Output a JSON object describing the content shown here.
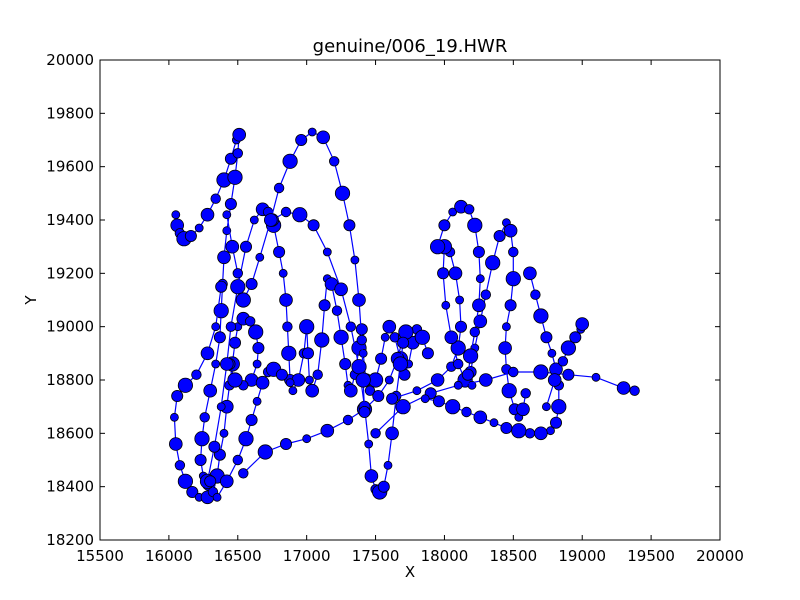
{
  "chart_data": {
    "type": "scatter",
    "title": "genuine/006_19.HWR",
    "xlabel": "X",
    "ylabel": "Y",
    "xlim": [
      15500,
      20000
    ],
    "ylim": [
      18200,
      20000
    ],
    "x_ticks": [
      "15500",
      "16000",
      "16500",
      "17000",
      "17500",
      "18000",
      "18500",
      "19000",
      "19500",
      "20000"
    ],
    "y_ticks": [
      "18200",
      "18400",
      "18600",
      "18800",
      "19000",
      "19200",
      "19400",
      "19600",
      "19800",
      "20000"
    ],
    "grid": false,
    "legend": "none",
    "marker_color": "#0000ff",
    "line_color": "#0000ff",
    "series": [
      {
        "strokes": [
          [
            [
              16050,
              19420
            ],
            [
              16060,
              19380
            ],
            [
              16080,
              19350
            ],
            [
              16110,
              19330
            ],
            [
              16160,
              19340
            ],
            [
              16220,
              19370
            ],
            [
              16280,
              19420
            ],
            [
              16340,
              19480
            ],
            [
              16400,
              19550
            ],
            [
              16450,
              19630
            ],
            [
              16490,
              19700
            ],
            [
              16510,
              19720
            ],
            [
              16500,
              19650
            ],
            [
              16480,
              19560
            ],
            [
              16450,
              19460
            ],
            [
              16420,
              19360
            ],
            [
              16400,
              19260
            ],
            [
              16390,
              19160
            ],
            [
              16380,
              19060
            ],
            [
              16370,
              18960
            ],
            [
              16340,
              18860
            ],
            [
              16300,
              18760
            ],
            [
              16260,
              18660
            ],
            [
              16240,
              18580
            ],
            [
              16230,
              18500
            ],
            [
              16250,
              18440
            ],
            [
              16290,
              18410
            ]
          ],
          [
            [
              16380,
              19150
            ],
            [
              16340,
              19000
            ],
            [
              16280,
              18900
            ],
            [
              16200,
              18820
            ],
            [
              16120,
              18780
            ],
            [
              16060,
              18740
            ],
            [
              16040,
              18660
            ],
            [
              16050,
              18560
            ],
            [
              16080,
              18480
            ],
            [
              16120,
              18420
            ],
            [
              16170,
              18380
            ],
            [
              16220,
              18360
            ],
            [
              16280,
              18360
            ],
            [
              16320,
              18380
            ],
            [
              16350,
              18440
            ],
            [
              16370,
              18520
            ],
            [
              16400,
              18600
            ],
            [
              16420,
              18700
            ],
            [
              16440,
              18780
            ],
            [
              16460,
              18860
            ],
            [
              16480,
              18940
            ],
            [
              16500,
              19000
            ],
            [
              16540,
              19030
            ],
            [
              16590,
              19020
            ],
            [
              16630,
              18980
            ],
            [
              16650,
              18920
            ],
            [
              16640,
              18860
            ],
            [
              16600,
              18800
            ],
            [
              16540,
              18780
            ],
            [
              16480,
              18800
            ],
            [
              16440,
              18860
            ]
          ],
          [
            [
              16280,
              18420
            ],
            [
              16330,
              18550
            ],
            [
              16380,
              18700
            ],
            [
              16420,
              18860
            ],
            [
              16450,
              19000
            ],
            [
              16500,
              19150
            ],
            [
              16560,
              19300
            ],
            [
              16620,
              19400
            ],
            [
              16680,
              19440
            ],
            [
              16720,
              19430
            ],
            [
              16760,
              19380
            ],
            [
              16800,
              19280
            ],
            [
              16830,
              19200
            ],
            [
              16850,
              19100
            ],
            [
              16860,
              19000
            ],
            [
              16870,
              18900
            ],
            [
              16880,
              18800
            ],
            [
              16900,
              18760
            ],
            [
              16940,
              18800
            ],
            [
              16980,
              18900
            ],
            [
              17000,
              19000
            ],
            [
              17010,
              18900
            ],
            [
              17020,
              18800
            ],
            [
              17040,
              18760
            ],
            [
              17080,
              18820
            ],
            [
              17110,
              18950
            ],
            [
              17130,
              19080
            ],
            [
              17150,
              19180
            ],
            [
              17180,
              19160
            ],
            [
              17220,
              19060
            ],
            [
              17250,
              18960
            ],
            [
              17280,
              18860
            ],
            [
              17300,
              18780
            ],
            [
              17320,
              18760
            ],
            [
              17350,
              18820
            ],
            [
              17380,
              18920
            ],
            [
              17400,
              18990
            ],
            [
              17410,
              18900
            ],
            [
              17430,
              18800
            ],
            [
              17460,
              18760
            ],
            [
              17500,
              18800
            ],
            [
              17540,
              18880
            ],
            [
              17570,
              18960
            ],
            [
              17600,
              19000
            ],
            [
              17640,
              18960
            ],
            [
              17680,
              18880
            ],
            [
              17710,
              18820
            ],
            [
              17740,
              18860
            ],
            [
              17770,
              18940
            ],
            [
              17800,
              18990
            ],
            [
              17840,
              18960
            ],
            [
              17880,
              18900
            ]
          ],
          [
            [
              16540,
              18450
            ],
            [
              16700,
              18530
            ],
            [
              16850,
              18560
            ],
            [
              17000,
              18580
            ],
            [
              17150,
              18610
            ],
            [
              17300,
              18650
            ],
            [
              17420,
              18690
            ],
            [
              17520,
              18740
            ],
            [
              17600,
              18800
            ],
            [
              17660,
              18880
            ],
            [
              17700,
              18960
            ],
            [
              17720,
              18980
            ]
          ],
          [
            [
              16750,
              19400
            ],
            [
              16850,
              19430
            ],
            [
              16950,
              19420
            ],
            [
              17050,
              19380
            ],
            [
              17150,
              19280
            ],
            [
              17250,
              19140
            ],
            [
              17320,
              19000
            ],
            [
              17380,
              18850
            ],
            [
              17420,
              18700
            ],
            [
              17450,
              18560
            ],
            [
              17470,
              18440
            ],
            [
              17500,
              18390
            ],
            [
              17530,
              18380
            ],
            [
              17560,
              18400
            ],
            [
              17590,
              18480
            ],
            [
              17620,
              18600
            ],
            [
              17650,
              18740
            ],
            [
              17680,
              18860
            ],
            [
              17700,
              18940
            ]
          ],
          [
            [
              16420,
              19420
            ],
            [
              16460,
              19300
            ],
            [
              16500,
              19200
            ],
            [
              16540,
              19100
            ],
            [
              16600,
              19160
            ],
            [
              16660,
              19260
            ],
            [
              16740,
              19400
            ],
            [
              16800,
              19520
            ],
            [
              16880,
              19620
            ],
            [
              16960,
              19700
            ],
            [
              17040,
              19730
            ],
            [
              17120,
              19710
            ],
            [
              17200,
              19620
            ],
            [
              17260,
              19500
            ],
            [
              17310,
              19380
            ],
            [
              17350,
              19250
            ],
            [
              17380,
              19100
            ],
            [
              17400,
              18950
            ],
            [
              17410,
              18800
            ],
            [
              17420,
              18680
            ]
          ],
          [
            [
              17620,
              18730
            ],
            [
              17800,
              18760
            ],
            [
              17950,
              18800
            ],
            [
              18050,
              18850
            ],
            [
              18100,
              18920
            ],
            [
              18120,
              19000
            ],
            [
              18110,
              19100
            ],
            [
              18080,
              19200
            ],
            [
              18040,
              19280
            ],
            [
              18000,
              19300
            ],
            [
              17990,
              19200
            ],
            [
              18010,
              19080
            ],
            [
              18050,
              18960
            ],
            [
              18100,
              18860
            ],
            [
              18150,
              18800
            ],
            [
              18190,
              18830
            ],
            [
              18220,
              18920
            ],
            [
              18260,
              19020
            ],
            [
              18300,
              19120
            ],
            [
              18350,
              19240
            ],
            [
              18400,
              19340
            ],
            [
              18450,
              19390
            ],
            [
              18480,
              19360
            ],
            [
              18500,
              19280
            ],
            [
              18500,
              19180
            ],
            [
              18480,
              19080
            ],
            [
              18450,
              19000
            ],
            [
              18440,
              18920
            ],
            [
              18450,
              18840
            ],
            [
              18470,
              18760
            ],
            [
              18510,
              18690
            ],
            [
              18540,
              18660
            ],
            [
              18570,
              18690
            ],
            [
              18590,
              18750
            ]
          ],
          [
            [
              17950,
              19300
            ],
            [
              18000,
              19380
            ],
            [
              18060,
              19430
            ],
            [
              18120,
              19450
            ],
            [
              18180,
              19440
            ],
            [
              18220,
              19380
            ],
            [
              18250,
              19280
            ],
            [
              18260,
              19180
            ],
            [
              18250,
              19080
            ],
            [
              18220,
              18980
            ],
            [
              18190,
              18890
            ],
            [
              18170,
              18820
            ],
            [
              18200,
              18780
            ]
          ],
          [
            [
              17500,
              18600
            ],
            [
              17700,
              18700
            ],
            [
              17900,
              18750
            ],
            [
              18100,
              18780
            ],
            [
              18300,
              18800
            ],
            [
              18500,
              18830
            ],
            [
              18700,
              18830
            ],
            [
              18900,
              18820
            ],
            [
              19100,
              18810
            ],
            [
              19300,
              18770
            ],
            [
              19380,
              18760
            ]
          ],
          [
            [
              18620,
              19200
            ],
            [
              18660,
              19120
            ],
            [
              18700,
              19040
            ],
            [
              18740,
              18960
            ],
            [
              18780,
              18900
            ],
            [
              18810,
              18840
            ],
            [
              18830,
              18780
            ],
            [
              18830,
              18700
            ],
            [
              18810,
              18640
            ],
            [
              18770,
              18610
            ],
            [
              18700,
              18600
            ],
            [
              18620,
              18600
            ],
            [
              18540,
              18610
            ],
            [
              18450,
              18620
            ],
            [
              18360,
              18640
            ],
            [
              18260,
              18660
            ],
            [
              18160,
              18680
            ],
            [
              18060,
              18700
            ],
            [
              17960,
              18720
            ],
            [
              17860,
              18730
            ]
          ],
          [
            [
              18740,
              18700
            ],
            [
              18800,
              18800
            ],
            [
              18860,
              18870
            ],
            [
              18900,
              18920
            ],
            [
              18950,
              18960
            ],
            [
              18990,
              18990
            ],
            [
              19000,
              19010
            ]
          ],
          [
            [
              16300,
              18420
            ],
            [
              16350,
              18360
            ],
            [
              16420,
              18420
            ],
            [
              16500,
              18500
            ],
            [
              16560,
              18580
            ],
            [
              16600,
              18650
            ],
            [
              16640,
              18720
            ],
            [
              16680,
              18790
            ],
            [
              16720,
              18830
            ],
            [
              16760,
              18840
            ],
            [
              16820,
              18820
            ],
            [
              16880,
              18790
            ]
          ]
        ]
      }
    ]
  }
}
